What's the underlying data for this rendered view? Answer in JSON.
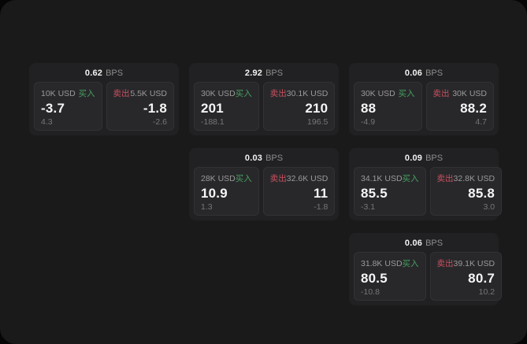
{
  "labels": {
    "bps_unit": "BPS",
    "buy": "买入",
    "sell": "卖出"
  },
  "colors": {
    "panel_background": "#1a1a1b",
    "card_background": "#212123",
    "pane_background": "#28282b",
    "buy_accent": "#46a05e",
    "sell_accent": "#c9505e",
    "primary_text": "#f5f5f5",
    "muted_text": "#9a9a9a"
  },
  "cards": [
    {
      "bps": "0.62",
      "buy": {
        "amount": "10K USD",
        "price": "-3.7",
        "delta": "4.3"
      },
      "sell": {
        "amount": "5.5K USD",
        "price": "-1.8",
        "delta": "-2.6"
      }
    },
    {
      "bps": "2.92",
      "buy": {
        "amount": "30K USD",
        "price": "201",
        "delta": "-188.1"
      },
      "sell": {
        "amount": "30.1K USD",
        "price": "210",
        "delta": "196.5"
      }
    },
    {
      "bps": "0.06",
      "buy": {
        "amount": "30K USD",
        "price": "88",
        "delta": "-4.9"
      },
      "sell": {
        "amount": "30K USD",
        "price": "88.2",
        "delta": "4.7"
      }
    },
    {
      "bps": "0.03",
      "buy": {
        "amount": "28K USD",
        "price": "10.9",
        "delta": "1.3"
      },
      "sell": {
        "amount": "32.6K USD",
        "price": "11",
        "delta": "-1.8"
      }
    },
    {
      "bps": "0.09",
      "buy": {
        "amount": "34.1K USD",
        "price": "85.5",
        "delta": "-3.1"
      },
      "sell": {
        "amount": "32.8K USD",
        "price": "85.8",
        "delta": "3.0"
      }
    },
    {
      "bps": "0.06",
      "buy": {
        "amount": "31.8K USD",
        "price": "80.5",
        "delta": "-10.8"
      },
      "sell": {
        "amount": "39.1K USD",
        "price": "80.7",
        "delta": "10.2"
      }
    }
  ]
}
